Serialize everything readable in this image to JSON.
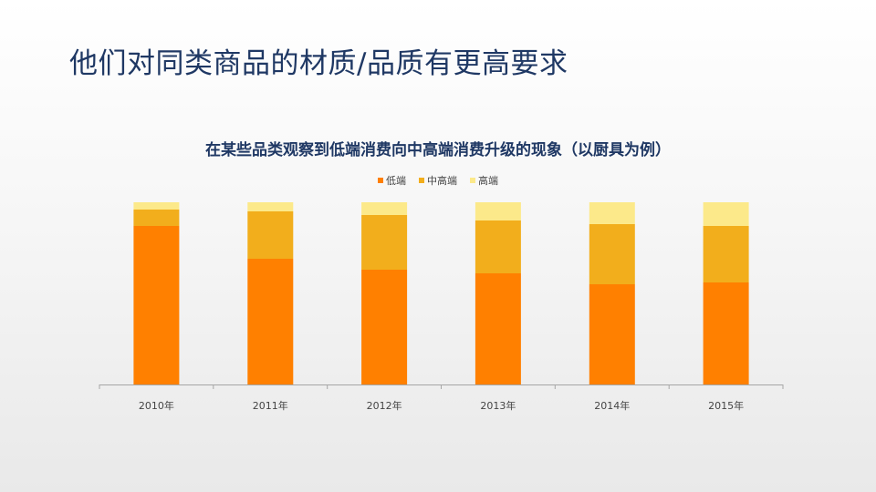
{
  "slide": {
    "title": "他们对同类商品的材质/品质有更高要求"
  },
  "chart_data": {
    "type": "bar",
    "stacked": true,
    "title": "在某些品类观察到低端消费向中高端消费升级的现象（以厨具为例）",
    "xlabel": "",
    "ylabel": "",
    "ylim": [
      0,
      100
    ],
    "grid": false,
    "legend_position": "top",
    "categories": [
      "2010年",
      "2011年",
      "2012年",
      "2013年",
      "2014年",
      "2015年"
    ],
    "series": [
      {
        "name": "低端",
        "color": "#ff8000",
        "values": [
          87,
          69,
          63,
          61,
          55,
          56
        ]
      },
      {
        "name": "中高端",
        "color": "#f2ae1c",
        "values": [
          9,
          26,
          30,
          29,
          33,
          31
        ]
      },
      {
        "name": "高端",
        "color": "#fce98a",
        "values": [
          4,
          5,
          7,
          10,
          12,
          13
        ]
      }
    ]
  }
}
